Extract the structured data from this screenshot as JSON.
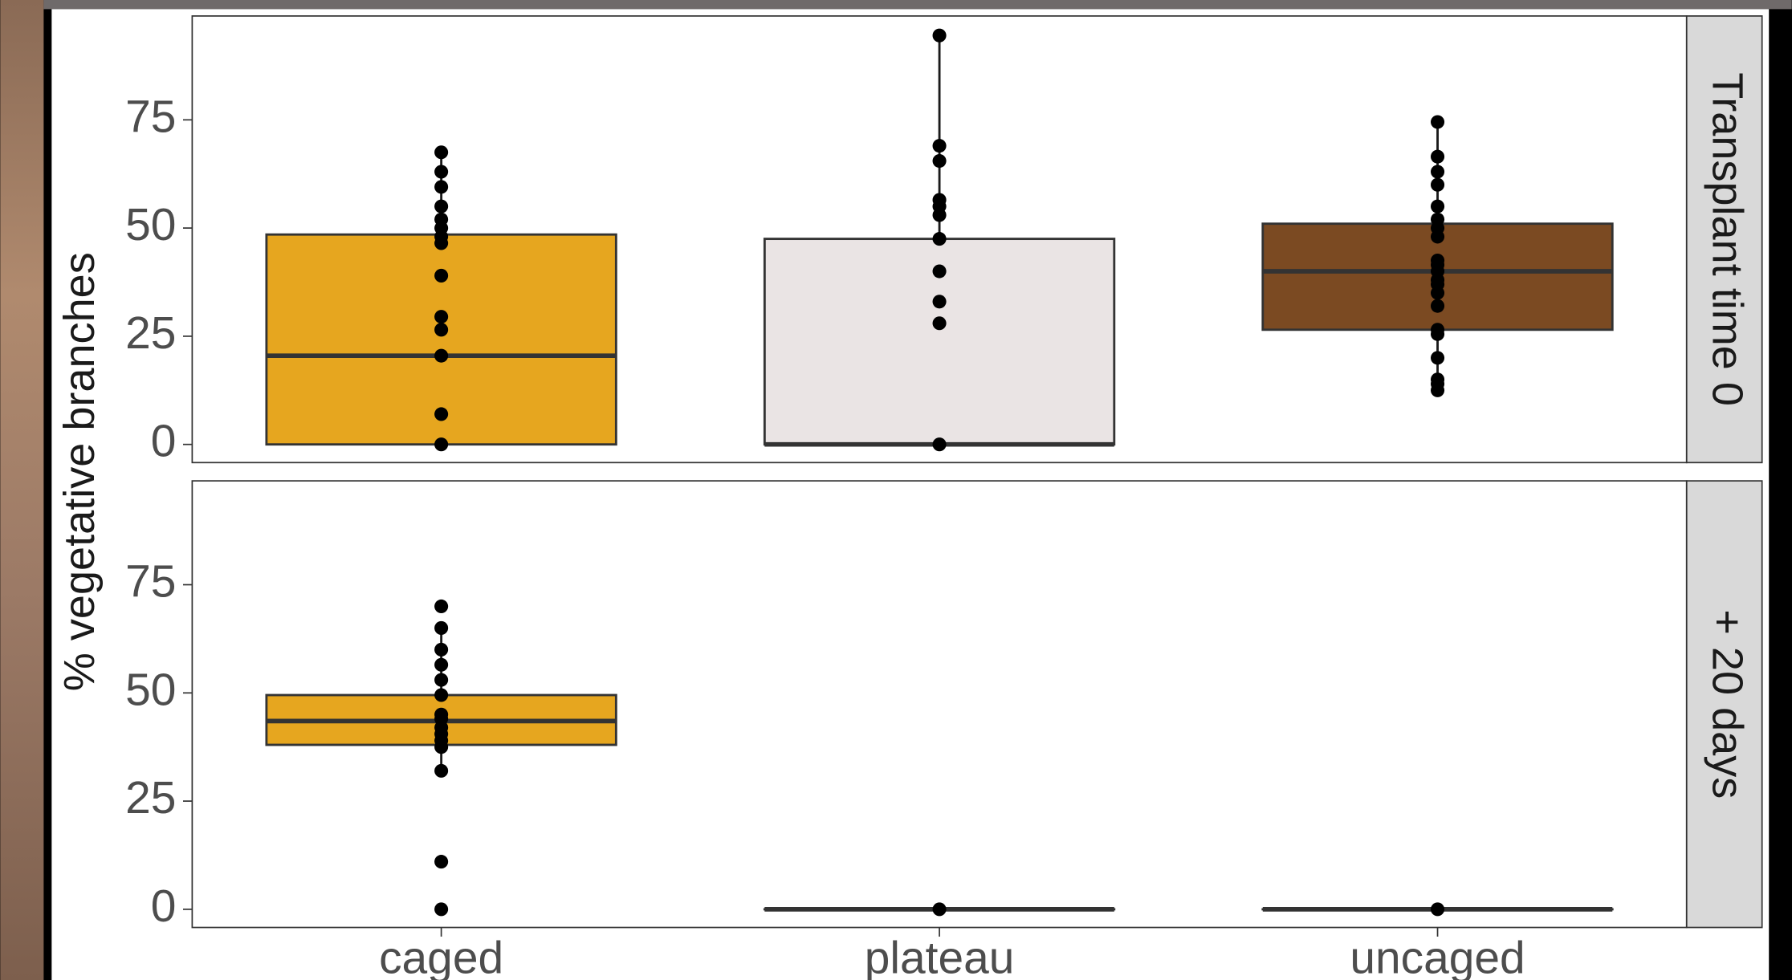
{
  "chart_data": {
    "type": "boxplot",
    "ylabel": "% vegetative branches",
    "categories": [
      "caged",
      "plateau",
      "uncaged"
    ],
    "colors": [
      "#E6A61F",
      "#EAE4E4",
      "#7B4A22"
    ],
    "ylim": [
      -4.2,
      99
    ],
    "yticks": [
      0,
      25,
      50,
      75
    ],
    "facets": [
      {
        "label": "Transplant time 0",
        "boxes": [
          {
            "whisker_low": 0,
            "q1": 0,
            "median": 20.5,
            "q3": 48.5,
            "whisker_high": 67.5,
            "points": [
              0,
              7,
              20.5,
              26.5,
              29.5,
              39,
              46.5,
              48,
              50,
              52,
              55,
              59.5,
              63,
              67.5
            ]
          },
          {
            "whisker_low": 0,
            "q1": 0,
            "median": 0,
            "q3": 47.5,
            "whisker_high": 94.5,
            "points": [
              0,
              28,
              33,
              40,
              47.5,
              53,
              55,
              56.5,
              65.5,
              69,
              94.5
            ]
          },
          {
            "whisker_low": 12.5,
            "q1": 26.5,
            "median": 40,
            "q3": 51,
            "whisker_high": 74.5,
            "points": [
              12.5,
              14,
              15,
              20,
              25.5,
              26.5,
              32,
              35,
              37,
              38,
              40,
              41.5,
              42.5,
              48,
              50,
              52,
              55,
              60,
              63,
              66.5,
              74.5
            ]
          }
        ]
      },
      {
        "label": "+ 20 days",
        "boxes": [
          {
            "whisker_low": 32,
            "q1": 38,
            "median": 43.5,
            "q3": 49.5,
            "whisker_high": 65,
            "points": [
              0,
              11,
              32,
              37.5,
              39,
              40.5,
              42,
              44,
              45,
              49.5,
              53,
              56.5,
              60,
              65,
              70
            ]
          },
          {
            "whisker_low": 0,
            "q1": 0,
            "median": 0,
            "q3": 0,
            "whisker_high": 0,
            "points": [
              0
            ]
          },
          {
            "whisker_low": 0,
            "q1": 0,
            "median": 0,
            "q3": 0,
            "whisker_high": 0,
            "points": [
              0
            ]
          }
        ]
      }
    ]
  }
}
